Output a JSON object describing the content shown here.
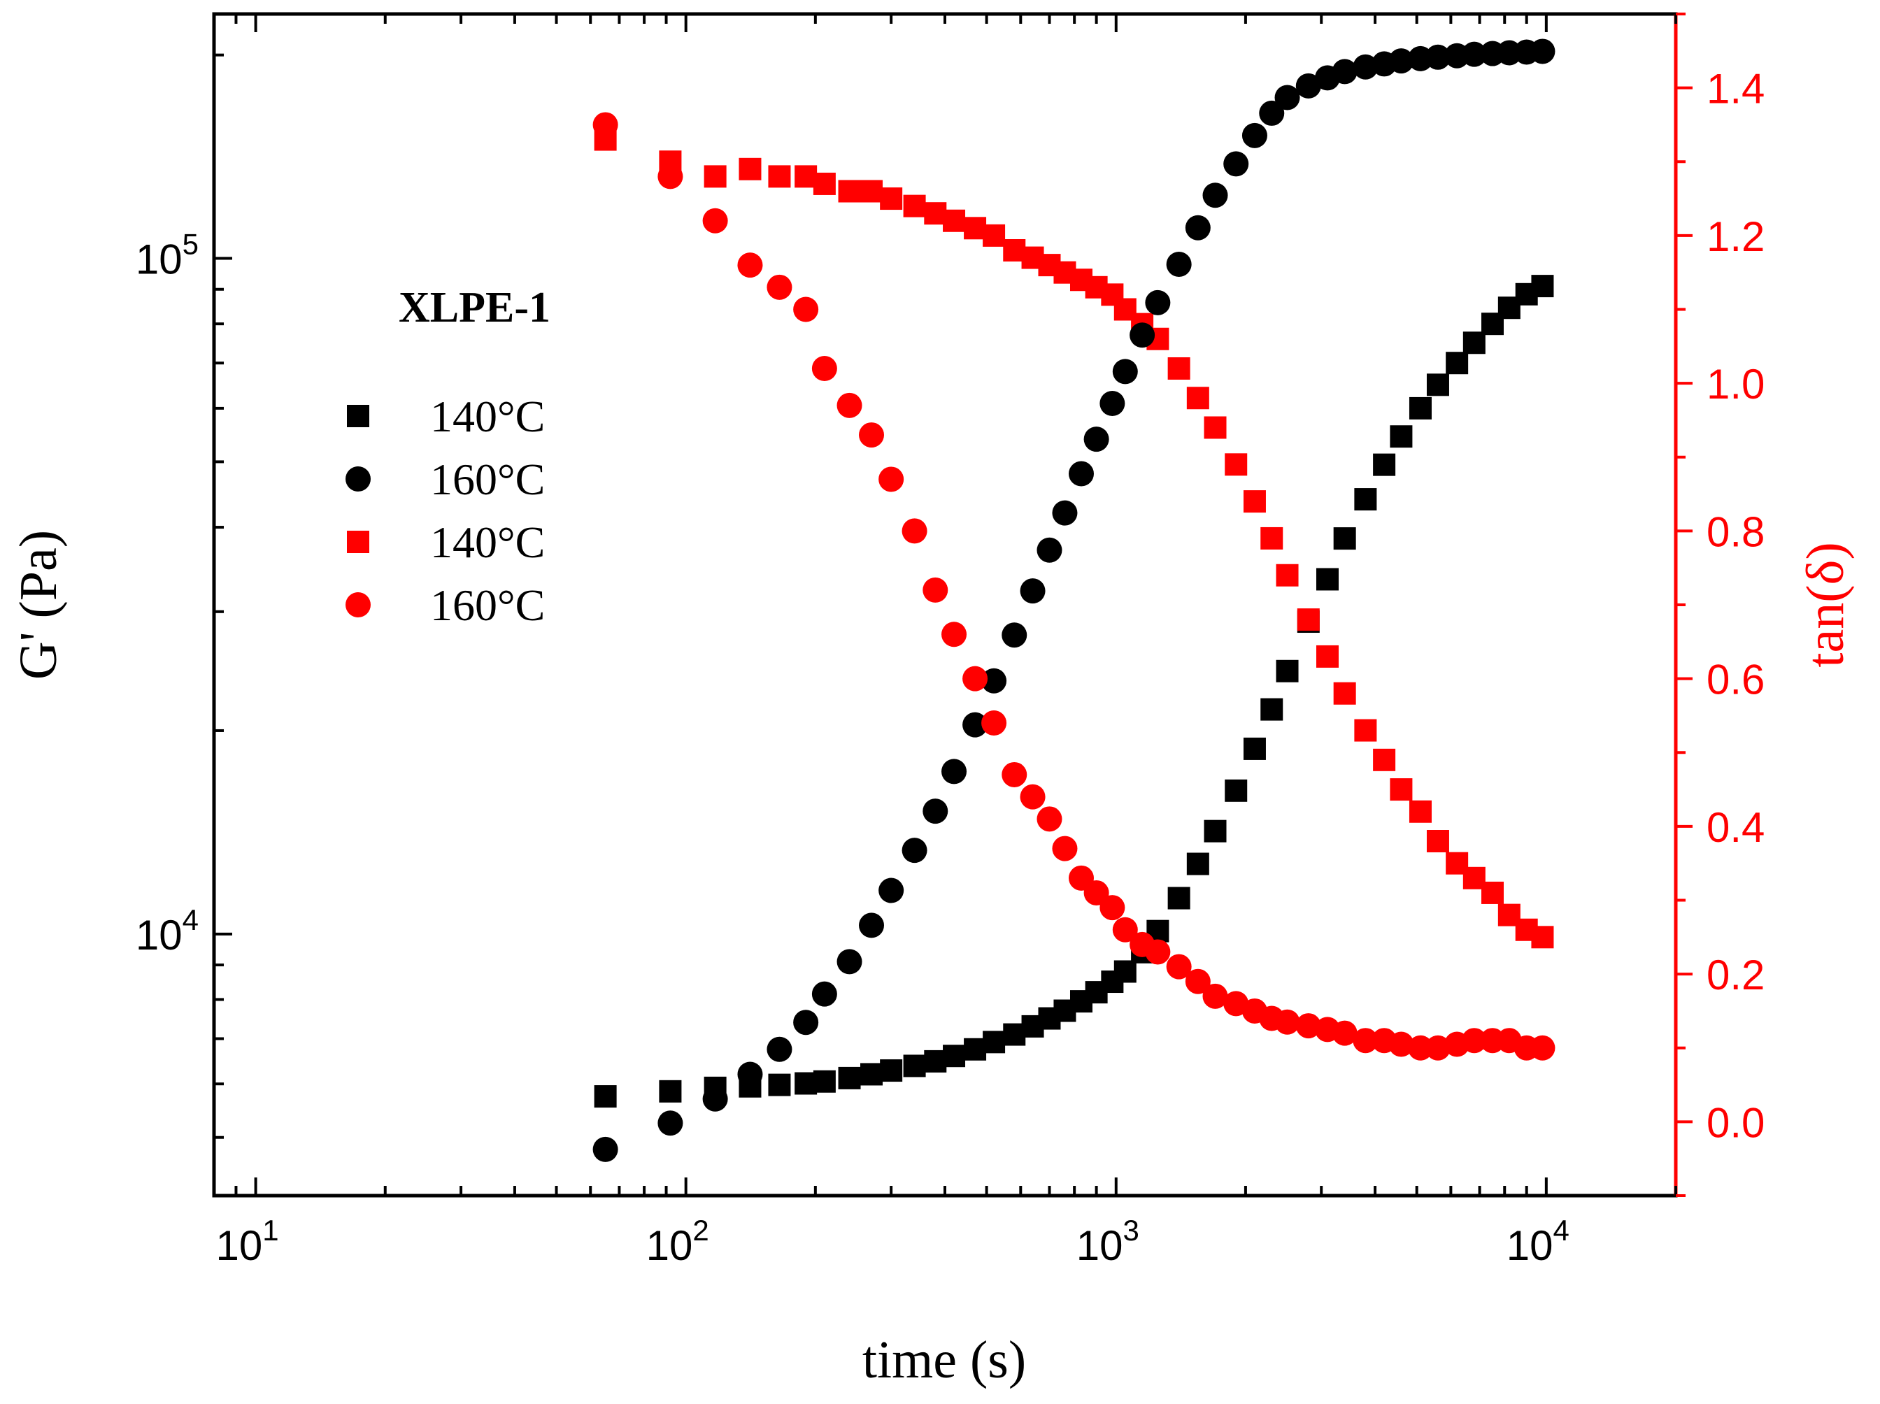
{
  "chart_data": {
    "type": "scatter",
    "title": "",
    "annotation": "XLPE-1",
    "xlabel": "time (s)",
    "ylabel": "G' (Pa)",
    "y2label": "tan(δ)",
    "x_scale": "log",
    "y_scale": "log",
    "xlim": [
      8,
      20000
    ],
    "ylim": [
      4100,
      230000
    ],
    "y2lim": [
      -0.1,
      1.5
    ],
    "x_ticks": [
      {
        "value": 10,
        "base": "10",
        "exp": "1"
      },
      {
        "value": 100,
        "base": "10",
        "exp": "2"
      },
      {
        "value": 1000,
        "base": "10",
        "exp": "3"
      },
      {
        "value": 10000,
        "base": "10",
        "exp": "4"
      }
    ],
    "y_ticks": [
      {
        "value": 10000,
        "base": "10",
        "exp": "4"
      },
      {
        "value": 100000,
        "base": "10",
        "exp": "5"
      }
    ],
    "y2_ticks": [
      "0.0",
      "0.2",
      "0.4",
      "0.6",
      "0.8",
      "1.0",
      "1.2",
      "1.4"
    ],
    "colors": {
      "black": "#000000",
      "red": "#ff0000"
    },
    "legend": [
      {
        "label": "140°C",
        "marker": "square",
        "color": "#000000"
      },
      {
        "label": "160°C",
        "marker": "circle",
        "color": "#000000"
      },
      {
        "label": "140°C",
        "marker": "square",
        "color": "#ff0000"
      },
      {
        "label": "160°C",
        "marker": "circle",
        "color": "#ff0000"
      }
    ],
    "series": [
      {
        "name": "G' 140°C",
        "axis": "left",
        "marker": "square",
        "color": "#000000",
        "x": [
          65,
          92,
          117,
          141,
          165,
          190,
          210,
          240,
          270,
          300,
          340,
          380,
          420,
          470,
          520,
          580,
          640,
          700,
          760,
          830,
          900,
          980,
          1050,
          1150,
          1250,
          1400,
          1550,
          1700,
          1900,
          2100,
          2300,
          2500,
          2800,
          3100,
          3400,
          3800,
          4200,
          4600,
          5100,
          5600,
          6200,
          6800,
          7500,
          8200,
          9000,
          9800
        ],
        "y": [
          5750,
          5850,
          5920,
          5950,
          5980,
          6010,
          6050,
          6120,
          6200,
          6280,
          6380,
          6480,
          6600,
          6750,
          6920,
          7100,
          7300,
          7500,
          7700,
          7950,
          8200,
          8500,
          8800,
          9400,
          10100,
          11300,
          12700,
          14200,
          16300,
          18800,
          21500,
          24500,
          29000,
          33500,
          38500,
          44000,
          49500,
          54500,
          60000,
          65000,
          70000,
          75000,
          80000,
          84500,
          88500,
          91000
        ]
      },
      {
        "name": "G' 160°C",
        "axis": "left",
        "marker": "circle",
        "color": "#000000",
        "x": [
          65,
          92,
          117,
          141,
          165,
          190,
          210,
          240,
          270,
          300,
          340,
          380,
          420,
          470,
          520,
          580,
          640,
          700,
          760,
          830,
          900,
          980,
          1050,
          1150,
          1250,
          1400,
          1550,
          1700,
          1900,
          2100,
          2300,
          2500,
          2800,
          3100,
          3400,
          3800,
          4200,
          4600,
          5100,
          5600,
          6200,
          6800,
          7500,
          8200,
          9000,
          9800
        ],
        "y": [
          4800,
          5250,
          5700,
          6200,
          6750,
          7400,
          8150,
          9100,
          10300,
          11600,
          13300,
          15200,
          17400,
          20400,
          23700,
          27700,
          32200,
          37000,
          42000,
          48000,
          54000,
          61000,
          68000,
          77000,
          86000,
          98000,
          111000,
          124000,
          138000,
          152000,
          164000,
          173000,
          180000,
          185000,
          189000,
          192000,
          194000,
          196000,
          197500,
          198500,
          199500,
          200500,
          201000,
          201500,
          202000,
          202500
        ]
      },
      {
        "name": "tan(δ) 140°C",
        "axis": "right",
        "marker": "square",
        "color": "#ff0000",
        "x": [
          65,
          92,
          117,
          141,
          165,
          190,
          210,
          240,
          270,
          300,
          340,
          380,
          420,
          470,
          520,
          580,
          640,
          700,
          760,
          830,
          900,
          980,
          1050,
          1150,
          1250,
          1400,
          1550,
          1700,
          1900,
          2100,
          2300,
          2500,
          2800,
          3100,
          3400,
          3800,
          4200,
          4600,
          5100,
          5600,
          6200,
          6800,
          7500,
          8200,
          9000,
          9800
        ],
        "y": [
          1.33,
          1.3,
          1.28,
          1.29,
          1.28,
          1.28,
          1.27,
          1.26,
          1.26,
          1.25,
          1.24,
          1.23,
          1.22,
          1.21,
          1.2,
          1.18,
          1.17,
          1.16,
          1.15,
          1.14,
          1.13,
          1.12,
          1.1,
          1.08,
          1.06,
          1.02,
          0.98,
          0.94,
          0.89,
          0.84,
          0.79,
          0.74,
          0.68,
          0.63,
          0.58,
          0.53,
          0.49,
          0.45,
          0.42,
          0.38,
          0.35,
          0.33,
          0.31,
          0.28,
          0.26,
          0.25
        ]
      },
      {
        "name": "tan(δ) 160°C",
        "axis": "right",
        "marker": "circle",
        "color": "#ff0000",
        "x": [
          65,
          92,
          117,
          141,
          165,
          190,
          210,
          240,
          270,
          300,
          340,
          380,
          420,
          470,
          520,
          580,
          640,
          700,
          760,
          830,
          900,
          980,
          1050,
          1150,
          1250,
          1400,
          1550,
          1700,
          1900,
          2100,
          2300,
          2500,
          2800,
          3100,
          3400,
          3800,
          4200,
          4600,
          5100,
          5600,
          6200,
          6800,
          7500,
          8200,
          9000,
          9800
        ],
        "y": [
          1.35,
          1.28,
          1.22,
          1.16,
          1.13,
          1.1,
          1.02,
          0.97,
          0.93,
          0.87,
          0.8,
          0.72,
          0.66,
          0.6,
          0.54,
          0.47,
          0.44,
          0.41,
          0.37,
          0.33,
          0.31,
          0.29,
          0.26,
          0.24,
          0.23,
          0.21,
          0.19,
          0.17,
          0.16,
          0.15,
          0.14,
          0.135,
          0.13,
          0.125,
          0.12,
          0.11,
          0.11,
          0.105,
          0.1,
          0.1,
          0.105,
          0.11,
          0.11,
          0.11,
          0.1,
          0.1
        ]
      }
    ]
  }
}
